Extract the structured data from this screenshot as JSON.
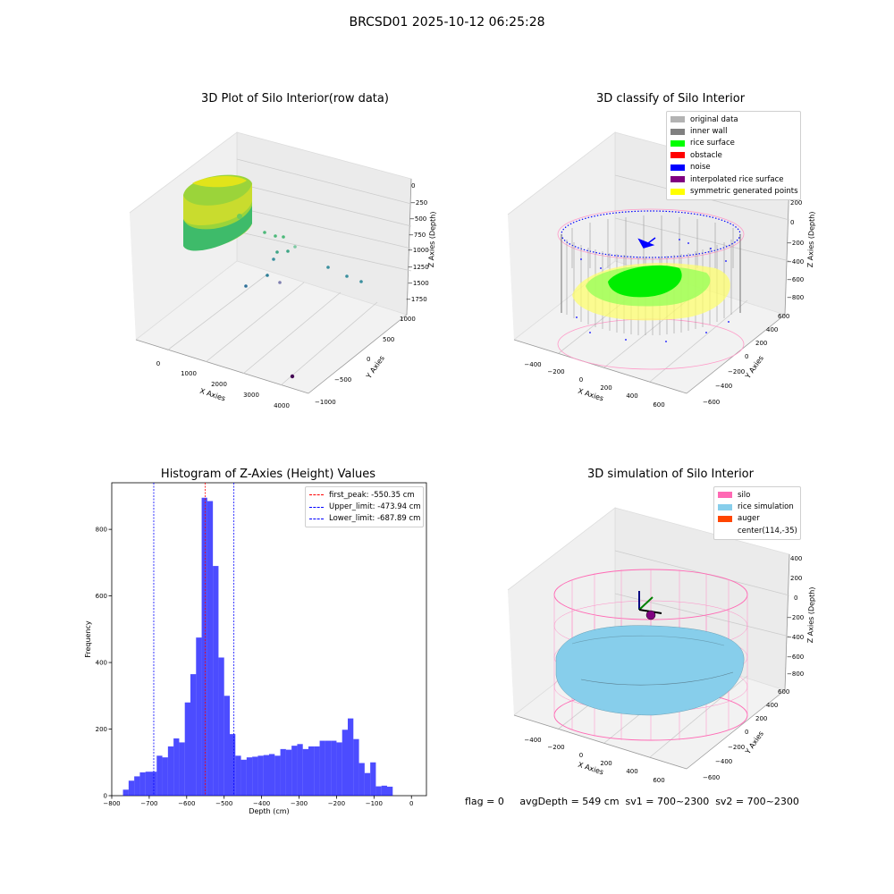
{
  "figure_title": "BRCSD01 2025-10-12 06:25:28",
  "status_line": "flag = 0     avgDepth = 549 cm  sv1 = 700~2300  sv2 = 700~2300",
  "chart_data": [
    {
      "type": "scatter",
      "projection": "3d",
      "title": "3D Plot of Silo Interior(row data)",
      "xlabel": "X Axies",
      "ylabel": "Y Axies",
      "zlabel": "Z Axies (Depth)",
      "x_ticks": [
        "0",
        "1000",
        "2000",
        "3000",
        "4000"
      ],
      "y_ticks": [
        "−1000",
        "−500",
        "0",
        "500",
        "1000"
      ],
      "z_ticks": [
        "−1750",
        "−1500",
        "−1250",
        "−1000",
        "−750",
        "−500",
        "−250",
        "0"
      ],
      "colormap": "viridis"
    },
    {
      "type": "scatter",
      "projection": "3d",
      "title": "3D classify of Silo Interior",
      "xlabel": "X Axies",
      "ylabel": "Y Axies",
      "zlabel": "Z Axies (Depth)",
      "x_ticks": [
        "−400",
        "−200",
        "0",
        "200",
        "400",
        "600"
      ],
      "y_ticks": [
        "−600",
        "−400",
        "−200",
        "0",
        "200",
        "400",
        "600"
      ],
      "z_ticks": [
        "−800",
        "−600",
        "−400",
        "−200",
        "0",
        "200"
      ],
      "legend": [
        {
          "label": "original data",
          "color": "#b3b3b3"
        },
        {
          "label": "inner wall",
          "color": "#808080"
        },
        {
          "label": "rice surface",
          "color": "#00ff00"
        },
        {
          "label": "obstacle",
          "color": "#ff0000"
        },
        {
          "label": "noise",
          "color": "#0000ff"
        },
        {
          "label": "interpolated rice surface",
          "color": "#800080"
        },
        {
          "label": "symmetric generated points",
          "color": "#ffff00"
        }
      ],
      "legend_position": "top-right"
    },
    {
      "type": "bar",
      "title": "Histogram of Z-Axies (Height) Values",
      "xlabel": "Depth (cm)",
      "ylabel": "Frequency",
      "bin_start": -770,
      "bin_width": 15,
      "values": [
        18,
        45,
        58,
        70,
        72,
        72,
        120,
        115,
        148,
        172,
        160,
        280,
        365,
        475,
        895,
        885,
        690,
        415,
        300,
        185,
        120,
        108,
        115,
        117,
        120,
        122,
        125,
        120,
        140,
        138,
        150,
        155,
        140,
        148,
        148,
        165,
        165,
        165,
        160,
        198,
        232,
        170,
        98,
        68,
        100,
        28,
        30,
        27
      ],
      "xlim": [
        -800,
        40
      ],
      "ylim": [
        0,
        940
      ],
      "x_ticks": [
        "−800",
        "−700",
        "−600",
        "−500",
        "−400",
        "−300",
        "−200",
        "−100",
        "0"
      ],
      "y_ticks": [
        "0",
        "200",
        "400",
        "600",
        "800"
      ],
      "bar_color": "#0000ff",
      "vlines": [
        {
          "label": "first_peak: -550.35 cm",
          "x": -550.35,
          "color": "#ff0000"
        },
        {
          "label": "Upper_limit: -473.94 cm",
          "x": -473.94,
          "color": "#0000ff"
        },
        {
          "label": "Lower_limit: -687.89 cm",
          "x": -687.89,
          "color": "#0000ff"
        }
      ],
      "legend_position": "top-right"
    },
    {
      "type": "surface",
      "projection": "3d",
      "title": "3D simulation of Silo Interior",
      "xlabel": "X Axies",
      "ylabel": "Y Axies",
      "zlabel": "Z Axies (Depth)",
      "x_ticks": [
        "−400",
        "−200",
        "0",
        "200",
        "400",
        "600"
      ],
      "y_ticks": [
        "−600",
        "−400",
        "−200",
        "0",
        "200",
        "400",
        "600"
      ],
      "z_ticks": [
        "−800",
        "−600",
        "−400",
        "−200",
        "0",
        "200",
        "400"
      ],
      "legend": [
        {
          "label": "silo",
          "color": "#ff69b4"
        },
        {
          "label": "rice simulation",
          "color": "#87ceeb"
        },
        {
          "label": "auger",
          "color": "#ff4500"
        },
        {
          "label": "center(114,-35)",
          "color": ""
        }
      ],
      "legend_position": "top-right"
    }
  ]
}
